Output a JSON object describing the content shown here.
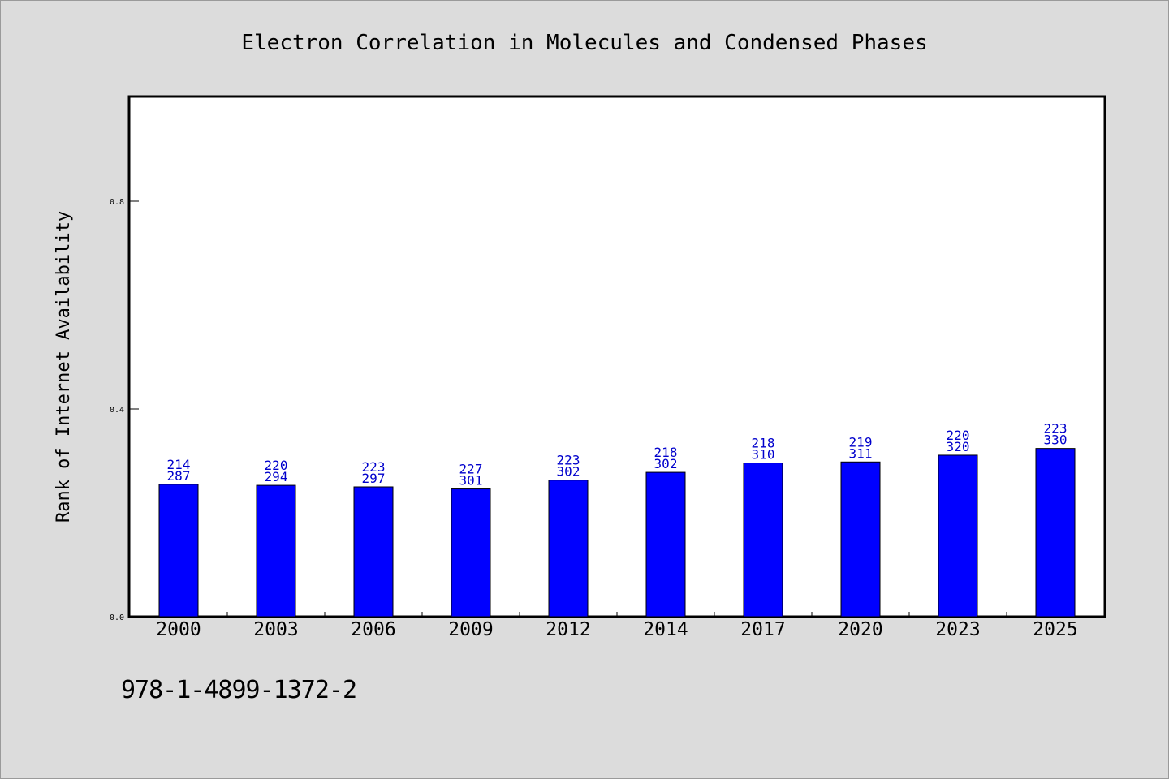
{
  "chart_data": {
    "type": "bar",
    "title": "Electron Correlation in Molecules and Condensed Phases",
    "xlabel": "",
    "ylabel": "Rank of Internet Availability",
    "categories": [
      "2000",
      "2003",
      "2006",
      "2009",
      "2012",
      "2014",
      "2017",
      "2020",
      "2023",
      "2025"
    ],
    "values": [
      0.255,
      0.253,
      0.25,
      0.246,
      0.263,
      0.278,
      0.296,
      0.298,
      0.311,
      0.324
    ],
    "label_top": [
      "214",
      "220",
      "223",
      "227",
      "223",
      "218",
      "218",
      "219",
      "220",
      "223"
    ],
    "label_bottom": [
      "287",
      "294",
      "297",
      "301",
      "302",
      "302",
      "310",
      "311",
      "320",
      "330"
    ],
    "ylim": [
      0,
      1.0
    ],
    "yticks": [
      0.0,
      0.4,
      0.8
    ],
    "ytick_labels": [
      "0.0",
      "0.4",
      "0.8"
    ],
    "grid": false,
    "bar_color": "#0000ff",
    "label_color": "#0000cc"
  },
  "footer": {
    "identifier": "978-1-4899-1372-2"
  }
}
